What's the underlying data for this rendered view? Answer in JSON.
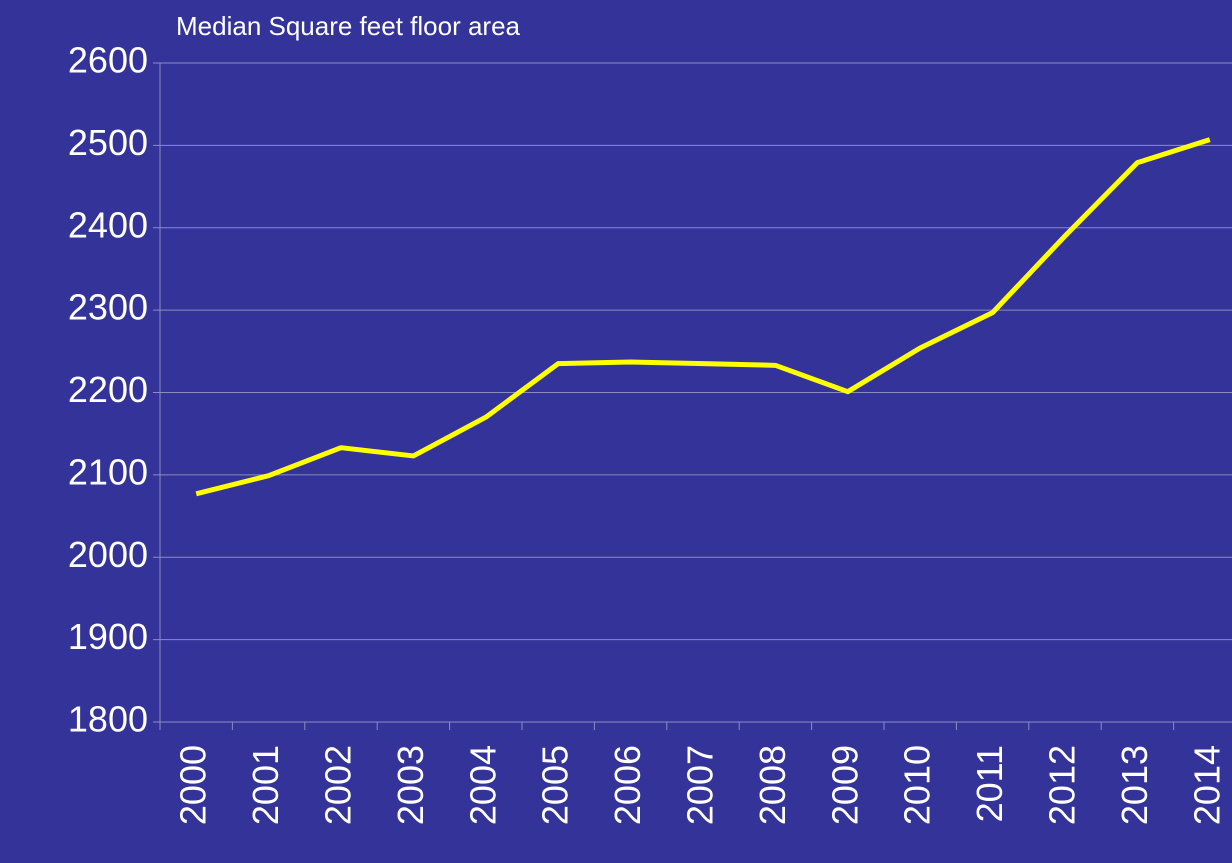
{
  "chart_data": {
    "type": "line",
    "title": "Median Square feet floor area",
    "categories": [
      "2000",
      "2001",
      "2002",
      "2003",
      "2004",
      "2005",
      "2006",
      "2007",
      "2008",
      "2009",
      "2010",
      "2011",
      "2012",
      "2013",
      "2014"
    ],
    "series": [
      {
        "color": "#ffff00",
        "values": [
          2077,
          2099,
          2133,
          2123,
          2170,
          2235,
          2237,
          2235,
          2233,
          2201,
          2254,
          2297,
          2390,
          2479,
          2507
        ]
      }
    ],
    "ylim": [
      1800,
      2600
    ],
    "yticks": [
      1800,
      1900,
      2000,
      2100,
      2200,
      2300,
      2400,
      2500,
      2600
    ],
    "grid": true
  }
}
